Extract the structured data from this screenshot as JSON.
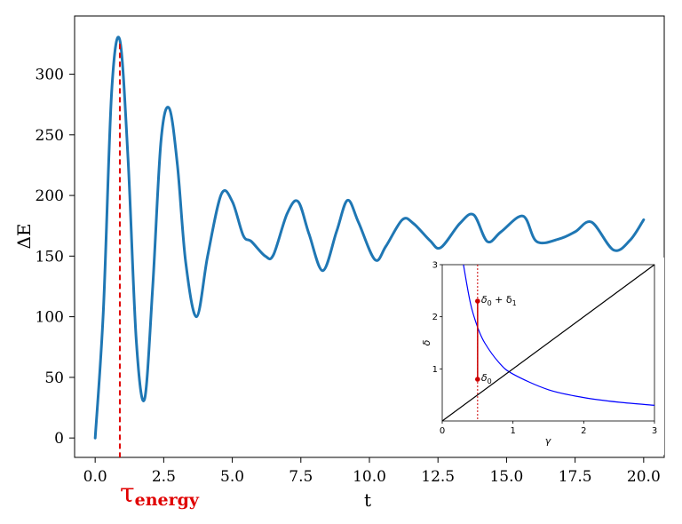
{
  "chart_data": [
    {
      "type": "line",
      "xlabel": "t",
      "ylabel": "ΔE",
      "xlim": [
        -0.75,
        20.75
      ],
      "ylim": [
        -16,
        348
      ],
      "xticks": [
        0.0,
        2.5,
        5.0,
        7.5,
        10.0,
        12.5,
        15.0,
        17.5,
        20.0
      ],
      "xtick_labels": [
        "0.0",
        "2.5",
        "5.0",
        "7.5",
        "10.0",
        "12.5",
        "15.0",
        "17.5",
        "20.0"
      ],
      "yticks": [
        0,
        50,
        100,
        150,
        200,
        250,
        300
      ],
      "ytick_labels": [
        "0",
        "50",
        "100",
        "150",
        "200",
        "250",
        "300"
      ],
      "grid": false,
      "series": [
        {
          "color": "#1f77b4",
          "x": [
            0.0,
            0.3,
            0.6,
            0.9,
            1.2,
            1.5,
            1.8,
            2.1,
            2.4,
            2.7,
            3.0,
            3.3,
            3.7,
            4.1,
            4.6,
            5.0,
            5.4,
            5.7,
            6.2,
            6.5,
            7.0,
            7.4,
            7.8,
            8.3,
            8.8,
            9.2,
            9.6,
            10.2,
            10.6,
            11.2,
            11.6,
            12.2,
            12.6,
            13.3,
            13.8,
            14.3,
            14.8,
            15.6,
            16.1,
            16.9,
            17.5,
            18.1,
            18.9,
            19.5,
            20.0
          ],
          "y": [
            0,
            105,
            285,
            328,
            230,
            80,
            32,
            125,
            245,
            272,
            225,
            145,
            100,
            150,
            201,
            195,
            167,
            162,
            150,
            151,
            185,
            195,
            168,
            138,
            170,
            196,
            178,
            147,
            158,
            180,
            177,
            163,
            157,
            177,
            184,
            162,
            170,
            183,
            162,
            164,
            170,
            178,
            155,
            163,
            180
          ]
        }
      ],
      "annotations": [
        {
          "text": "τ",
          "subscript": "energy",
          "x": 0.9,
          "color": "#e00000",
          "style": "dashed vertical line"
        }
      ]
    },
    {
      "type": "line",
      "xlabel": "γ",
      "ylabel": "δ",
      "xlim": [
        0,
        3
      ],
      "ylim": [
        0,
        3
      ],
      "xticks": [
        0,
        1,
        2,
        3
      ],
      "yticks": [
        1,
        2,
        3
      ],
      "grid": false,
      "series": [
        {
          "color": "#0000ff",
          "x": [
            0.3,
            0.4,
            0.5,
            0.6,
            0.8,
            1.0,
            1.5,
            2.0,
            2.5,
            3.0
          ],
          "y": [
            3.0,
            2.25,
            1.8,
            1.5,
            1.125,
            0.9,
            0.6,
            0.45,
            0.36,
            0.3
          ]
        },
        {
          "color": "#000000",
          "x": [
            0,
            3
          ],
          "y": [
            0,
            3
          ]
        }
      ],
      "markers": [
        {
          "x": 0.5,
          "y": 0.8,
          "label": "δ",
          "sub": "0"
        },
        {
          "x": 0.5,
          "y": 2.3,
          "label": "δ",
          "sub": "0",
          "plus": " + δ",
          "sub2": "1"
        }
      ],
      "vline_x": 0.5,
      "accent": "#cc0000"
    }
  ]
}
